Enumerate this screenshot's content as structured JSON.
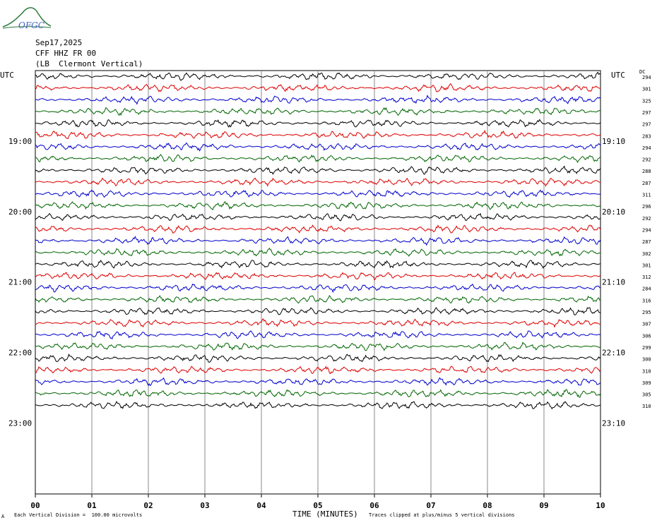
{
  "header": {
    "logo_text": "OFGC",
    "date": "Sep17,2025",
    "channel": "CFF HHZ FR 00",
    "location": "(LB  Clermont Vertical)"
  },
  "labels": {
    "utc_left": "UTC",
    "utc_right": "UTC",
    "dc": "DC",
    "xlabel": "TIME (MINUTES)",
    "scale_note": "Each Vertical Division =  100.00 microvolts",
    "clip_note": "Traces clipped at plus/minus 5 vertical divisions",
    "corner_mark": "A"
  },
  "colors": {
    "trace": [
      "#000000",
      "#dd0000",
      "#0000cc",
      "#006600"
    ],
    "grid": "#888888"
  },
  "chart_data": {
    "type": "line",
    "title": "",
    "xlabel": "TIME (MINUTES)",
    "xlim": [
      0,
      10
    ],
    "x_ticks": [
      "00",
      "01",
      "02",
      "03",
      "04",
      "05",
      "06",
      "07",
      "08",
      "09",
      "10"
    ],
    "left_time_labels": [
      "19:00",
      "20:00",
      "21:00",
      "22:00",
      "23:00"
    ],
    "right_time_labels": [
      "19:10",
      "20:10",
      "21:10",
      "22:10",
      "23:10"
    ],
    "trace_count": 29,
    "trace_start_utc": "18:20",
    "minutes_per_trace": 10,
    "rows_per_hour": 6,
    "dc_offsets": [
      294,
      301,
      325,
      297,
      297,
      283,
      294,
      292,
      288,
      287,
      311,
      296,
      292,
      294,
      287,
      302,
      301,
      312,
      284,
      316,
      295,
      307,
      306,
      299,
      300,
      310,
      309,
      305,
      310
    ]
  }
}
